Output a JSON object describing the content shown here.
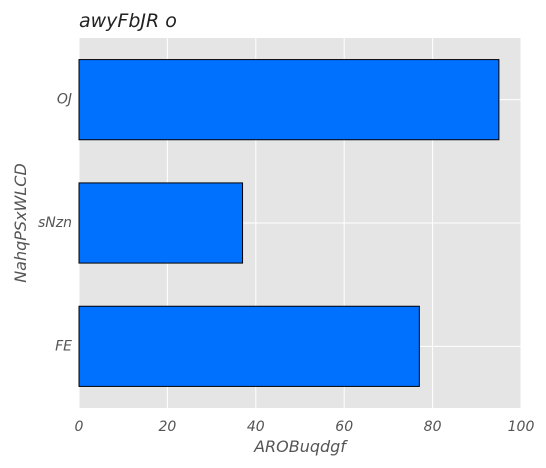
{
  "chart_data": {
    "type": "bar",
    "orientation": "horizontal",
    "title": "awyFbJR o",
    "xlabel": "AROBuqdgf",
    "ylabel": "NahqPSxWLCD",
    "categories": [
      "OJ",
      "sNzn",
      "FE"
    ],
    "values": [
      95,
      37,
      77
    ],
    "xlim": [
      0,
      100
    ],
    "xticks": [
      0,
      20,
      40,
      60,
      80,
      100
    ],
    "grid": true,
    "legend": "none",
    "colors": {
      "bar": "#0070ff",
      "bar_edge": "#000000",
      "plot_background": "#e5e5e5",
      "grid": "#ffffff"
    }
  }
}
